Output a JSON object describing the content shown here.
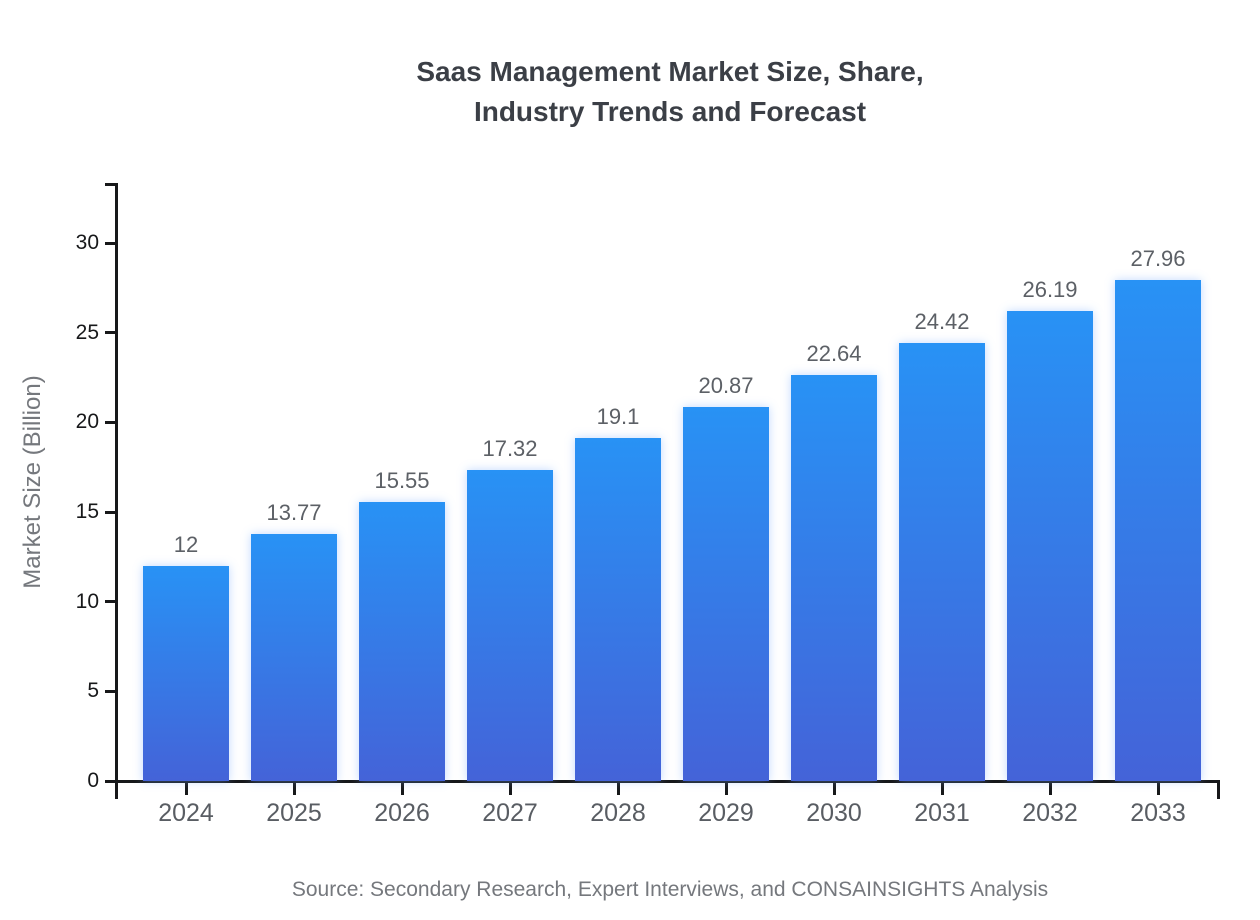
{
  "title": {
    "line1": "Saas Management Market Size, Share,",
    "line2": "Industry Trends and Forecast"
  },
  "y_axis": {
    "label": "Market Size (Billion)",
    "ticks": [
      0,
      5,
      10,
      15,
      20,
      25,
      30
    ]
  },
  "source": "Source: Secondary Research, Expert Interviews, and CONSAINSIGHTS Analysis",
  "colors": {
    "bar_gradient_top": "#2892F5",
    "bar_gradient_bottom": "#4463D8",
    "axis": "#17181a",
    "tick_label": "#17181a",
    "category_label": "#595d63",
    "value_label": "#5c6066",
    "muted_text": "#75787d",
    "title_text": "#3b3f46"
  },
  "chart_data": {
    "type": "bar",
    "title": "Saas Management Market Size, Share, Industry Trends and Forecast",
    "categories": [
      "2024",
      "2025",
      "2026",
      "2027",
      "2028",
      "2029",
      "2030",
      "2031",
      "2032",
      "2033"
    ],
    "values": [
      12,
      13.77,
      15.55,
      17.32,
      19.1,
      20.87,
      22.64,
      24.42,
      26.19,
      27.96
    ],
    "value_labels": [
      "12",
      "13.77",
      "15.55",
      "17.32",
      "19.1",
      "20.87",
      "22.64",
      "24.42",
      "26.19",
      "27.96"
    ],
    "xlabel": "",
    "ylabel": "Market Size (Billion)",
    "ylim": [
      0,
      33.3
    ],
    "ytick_step": 5,
    "grid": false,
    "legend": "none",
    "bar_color": "vertical gradient #2892F5 to #4463D8"
  }
}
